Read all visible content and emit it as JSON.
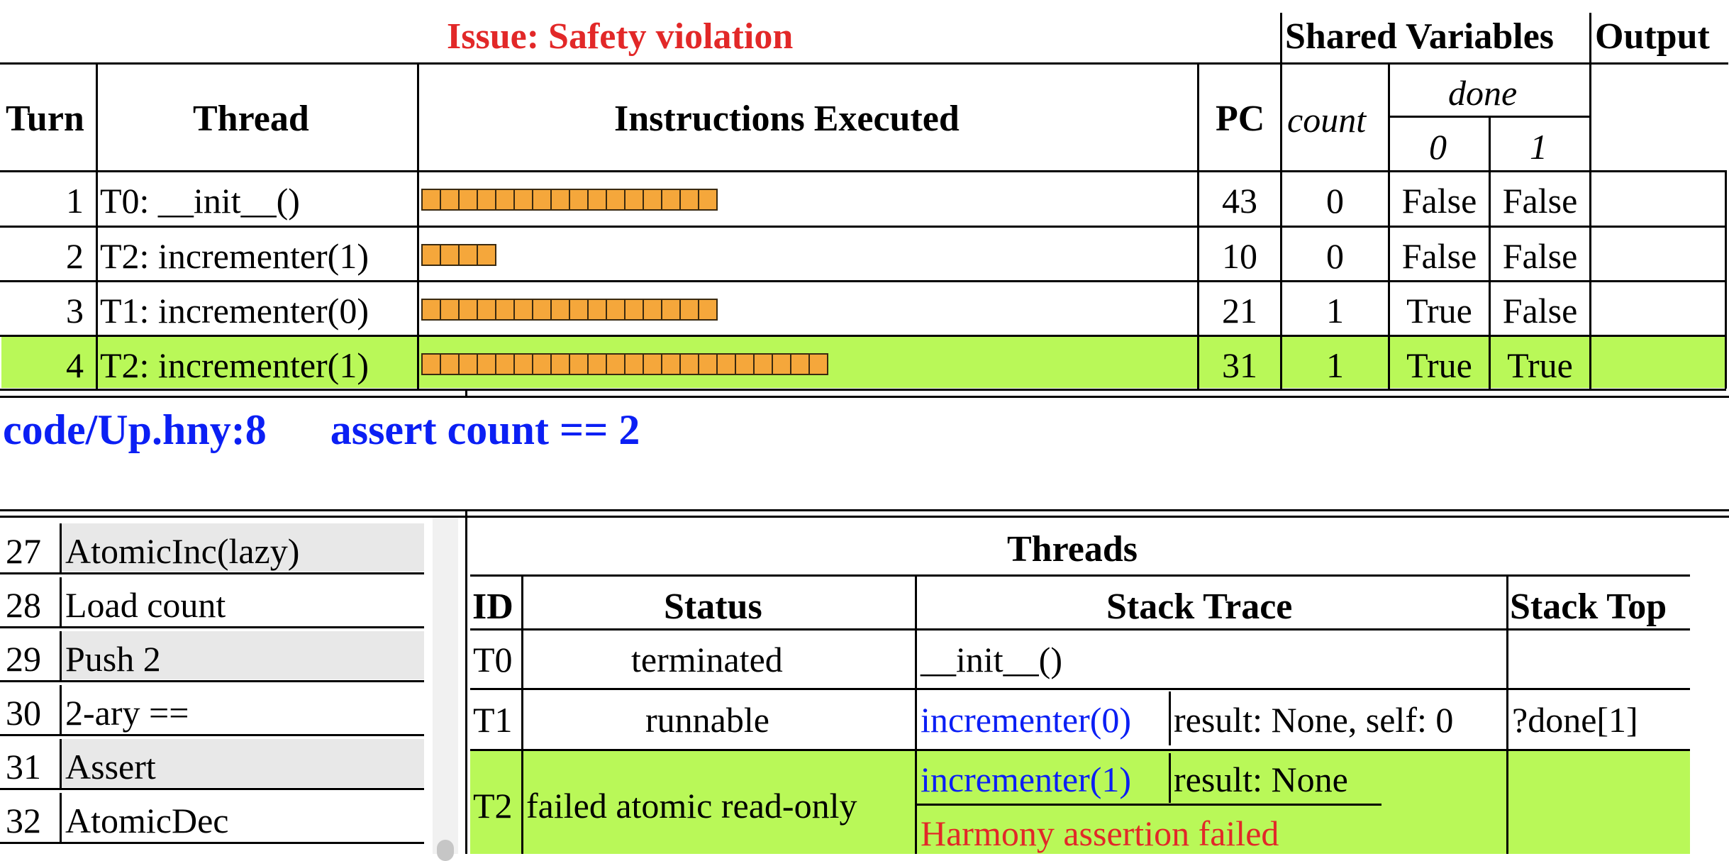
{
  "issue": "Issue: Safety violation",
  "top_headers": {
    "shared_variables": "Shared Variables",
    "output": "Output",
    "turn": "Turn",
    "thread": "Thread",
    "instructions": "Instructions Executed",
    "pc": "PC",
    "count": "count",
    "done": "done",
    "done_0": "0",
    "done_1": "1"
  },
  "turns": [
    {
      "turn": "1",
      "thread": "T0: __init__()",
      "instructions": 16,
      "pc": "43",
      "count": "0",
      "done0": "False",
      "done1": "False",
      "highlight": false
    },
    {
      "turn": "2",
      "thread": "T2: incrementer(1)",
      "instructions": 4,
      "pc": "10",
      "count": "0",
      "done0": "False",
      "done1": "False",
      "highlight": false
    },
    {
      "turn": "3",
      "thread": "T1: incrementer(0)",
      "instructions": 16,
      "pc": "21",
      "count": "1",
      "done0": "True",
      "done1": "False",
      "highlight": false
    },
    {
      "turn": "4",
      "thread": "T2: incrementer(1)",
      "instructions": 22,
      "pc": "31",
      "count": "1",
      "done0": "True",
      "done1": "True",
      "highlight": true
    }
  ],
  "location": {
    "file": "code/Up.hny:8",
    "statement": "assert count == 2"
  },
  "code_lines": [
    {
      "num": "27",
      "text": "AtomicInc(lazy)"
    },
    {
      "num": "28",
      "text": "Load count"
    },
    {
      "num": "29",
      "text": "Push 2"
    },
    {
      "num": "30",
      "text": "2-ary =="
    },
    {
      "num": "31",
      "text": "Assert"
    },
    {
      "num": "32",
      "text": "AtomicDec"
    }
  ],
  "threads_panel": {
    "title": "Threads",
    "headers": {
      "id": "ID",
      "status": "Status",
      "stack_trace": "Stack Trace",
      "stack_top": "Stack Top"
    },
    "rows": [
      {
        "id": "T0",
        "status": "terminated",
        "method": "__init__()",
        "locals": "",
        "stack_top": ""
      },
      {
        "id": "T1",
        "status": "runnable",
        "method": "incrementer(0)",
        "locals": "result: None, self: 0",
        "stack_top": "?done[1]"
      },
      {
        "id": "T2",
        "status": "failed atomic read-only",
        "method": "incrementer(1)",
        "locals": "result: None",
        "stack_top": "",
        "error": "Harmony assertion failed"
      }
    ]
  }
}
